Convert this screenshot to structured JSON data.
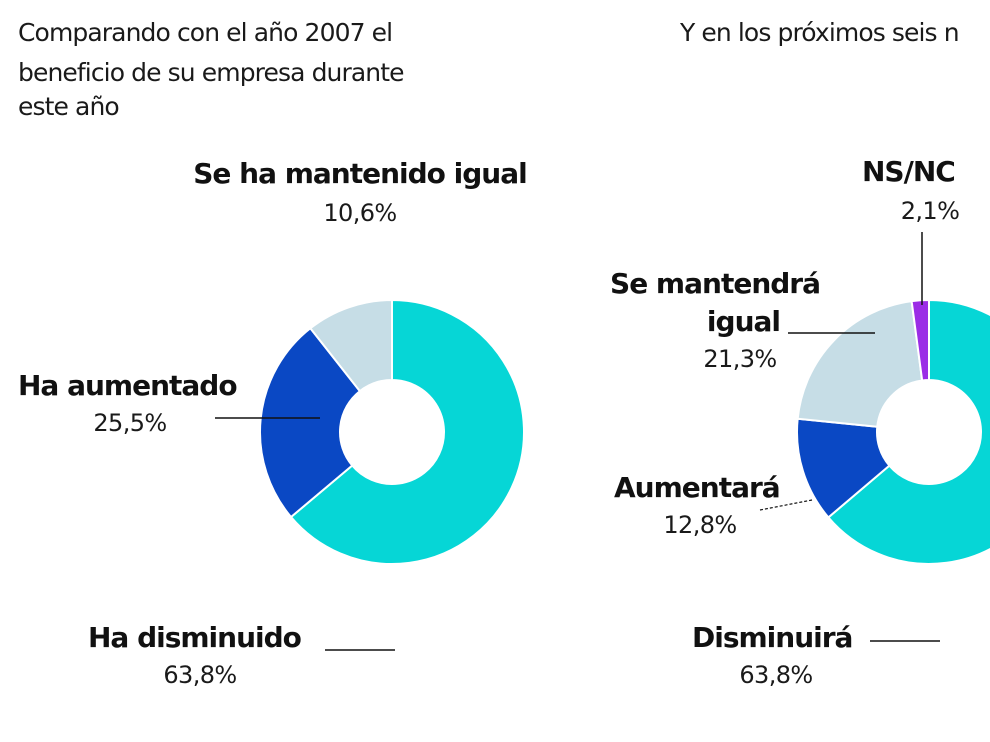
{
  "chart_data": [
    {
      "type": "pie",
      "donut": true,
      "title_lines": [
        "Comparando con el año 2007 el",
        "beneficio de su empresa durante",
        "este año"
      ],
      "slices": [
        {
          "label": "Ha disminuido",
          "value": 63.8,
          "value_text": "63,8%",
          "color": "#06d6d6"
        },
        {
          "label": "Ha aumentado",
          "value": 25.5,
          "value_text": "25,5%",
          "color": "#0a48c4"
        },
        {
          "label": "Se ha mantenido igual",
          "value": 10.6,
          "value_text": "10,6%",
          "color": "#c6dde6"
        }
      ]
    },
    {
      "type": "pie",
      "donut": true,
      "title_lines": [
        "Y en los próximos seis n"
      ],
      "slices": [
        {
          "label": "Disminuirá",
          "value": 63.8,
          "value_text": "63,8%",
          "color": "#06d6d6"
        },
        {
          "label": "Aumentará",
          "value": 12.8,
          "value_text": "12,8%",
          "color": "#0a48c4"
        },
        {
          "label": "Se mantendrá igual",
          "label_lines": [
            "Se mantendrá",
            "igual"
          ],
          "value": 21.3,
          "value_text": "21,3%",
          "color": "#c6dde6"
        },
        {
          "label": "NS/NC",
          "value": 2.1,
          "value_text": "2,1%",
          "color": "#9b2ce6"
        }
      ]
    }
  ]
}
